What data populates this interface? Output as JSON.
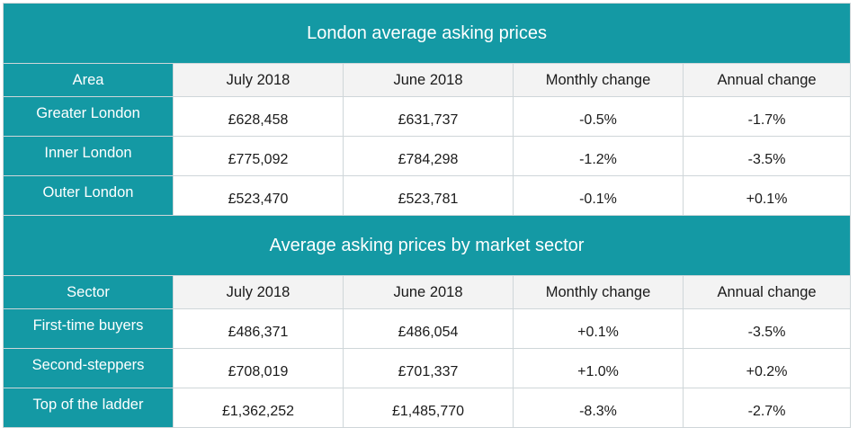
{
  "section1": {
    "title": "London average asking prices",
    "headers": [
      "Area",
      "July 2018",
      "June 2018",
      "Monthly change",
      "Annual change"
    ],
    "rows": [
      {
        "label": "Greater London",
        "july": "£628,458",
        "june": "£631,737",
        "monthly": "-0.5%",
        "annual": "-1.7%"
      },
      {
        "label": "Inner London",
        "july": "£775,092",
        "june": "£784,298",
        "monthly": "-1.2%",
        "annual": "-3.5%"
      },
      {
        "label": "Outer London",
        "july": "£523,470",
        "june": "£523,781",
        "monthly": "-0.1%",
        "annual": "+0.1%"
      }
    ]
  },
  "section2": {
    "title": "Average asking prices by market sector",
    "headers": [
      "Sector",
      "July 2018",
      "June 2018",
      "Monthly change",
      "Annual change"
    ],
    "rows": [
      {
        "label": "First-time buyers",
        "july": "£486,371",
        "june": "£486,054",
        "monthly": "+0.1%",
        "annual": "-3.5%"
      },
      {
        "label": "Second-steppers",
        "july": "£708,019",
        "june": "£701,337",
        "monthly": "+1.0%",
        "annual": "+0.2%"
      },
      {
        "label": "Top of the ladder",
        "july": "£1,362,252",
        "june": "£1,485,770",
        "monthly": "-8.3%",
        "annual": "-2.7%"
      }
    ]
  },
  "colors": {
    "teal": "#1499a4",
    "header_bg": "#f3f3f3",
    "border": "#cfd6d9"
  }
}
